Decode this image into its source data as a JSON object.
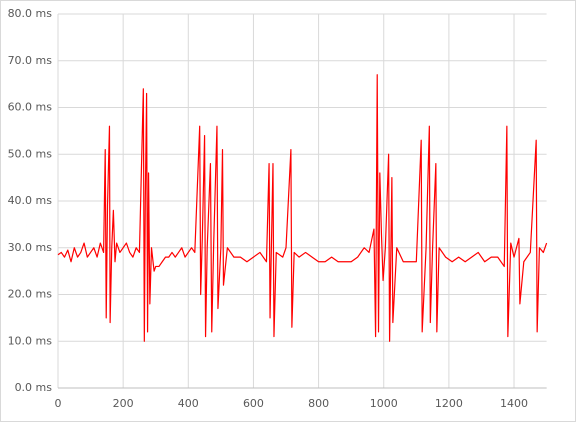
{
  "chart_data": {
    "type": "line",
    "color": "#ff0000",
    "grid": true,
    "xlim": [
      0,
      1500
    ],
    "xticks": [
      0,
      200,
      400,
      600,
      800,
      1000,
      1200,
      1400
    ],
    "ylim": [
      0,
      80
    ],
    "yticks": [
      {
        "value": 0,
        "label": "0.0 ms"
      },
      {
        "value": 10,
        "label": "10.0 ms"
      },
      {
        "value": 20,
        "label": "20.0 ms"
      },
      {
        "value": 30,
        "label": "30.0 ms"
      },
      {
        "value": 40,
        "label": "40.0 ms"
      },
      {
        "value": 50,
        "label": "50.0 ms"
      },
      {
        "value": 60,
        "label": "60.0 ms"
      },
      {
        "value": 70,
        "label": "70.0 ms"
      },
      {
        "value": 80,
        "label": "80.0 ms"
      }
    ],
    "x": [
      0,
      10,
      20,
      30,
      40,
      50,
      60,
      70,
      80,
      90,
      100,
      110,
      120,
      130,
      140,
      145,
      148,
      152,
      158,
      160,
      165,
      170,
      175,
      180,
      190,
      200,
      210,
      220,
      230,
      240,
      250,
      262,
      265,
      268,
      272,
      275,
      278,
      282,
      287,
      295,
      300,
      310,
      320,
      330,
      340,
      350,
      360,
      370,
      380,
      390,
      400,
      410,
      420,
      435,
      438,
      443,
      450,
      453,
      458,
      468,
      472,
      478,
      488,
      491,
      500,
      505,
      508,
      520,
      540,
      560,
      580,
      600,
      620,
      640,
      648,
      651,
      660,
      663,
      670,
      690,
      700,
      715,
      718,
      725,
      740,
      760,
      780,
      800,
      820,
      840,
      860,
      880,
      900,
      920,
      940,
      955,
      970,
      975,
      980,
      984,
      988,
      993,
      998,
      1005,
      1015,
      1018,
      1025,
      1028,
      1040,
      1060,
      1080,
      1100,
      1115,
      1118,
      1130,
      1140,
      1143,
      1150,
      1160,
      1163,
      1170,
      1190,
      1210,
      1230,
      1250,
      1270,
      1290,
      1310,
      1330,
      1350,
      1370,
      1378,
      1381,
      1390,
      1400,
      1415,
      1418,
      1430,
      1450,
      1468,
      1471,
      1478,
      1490,
      1500
    ],
    "values": [
      28.5,
      29,
      28,
      29.5,
      27,
      30,
      28,
      29,
      31,
      28,
      29,
      30,
      28,
      31,
      29,
      51,
      15,
      39,
      56,
      14,
      30,
      38,
      27,
      31,
      29,
      30,
      31,
      29,
      28,
      30,
      29,
      64,
      10,
      40,
      63,
      12,
      46,
      18,
      30,
      25,
      26,
      26,
      27,
      28,
      28,
      29,
      28,
      29,
      30,
      28,
      29,
      30,
      29,
      56,
      20,
      32,
      54,
      11,
      30,
      48,
      12,
      31,
      56,
      17,
      30,
      51,
      22,
      30,
      28,
      28,
      27,
      28,
      29,
      27,
      48,
      15,
      48,
      11,
      29,
      28,
      30,
      51,
      13,
      29,
      28,
      29,
      28,
      27,
      27,
      28,
      27,
      27,
      27,
      28,
      30,
      29,
      34,
      11,
      67,
      12,
      46,
      33,
      23,
      30,
      50,
      10,
      45,
      14,
      30,
      27,
      27,
      27,
      53,
      12,
      30,
      56,
      14,
      30,
      48,
      12,
      30,
      28,
      27,
      28,
      27,
      28,
      29,
      27,
      28,
      28,
      26,
      56,
      11,
      31,
      28,
      32,
      18,
      27,
      29,
      53,
      12,
      30,
      29,
      31
    ]
  }
}
